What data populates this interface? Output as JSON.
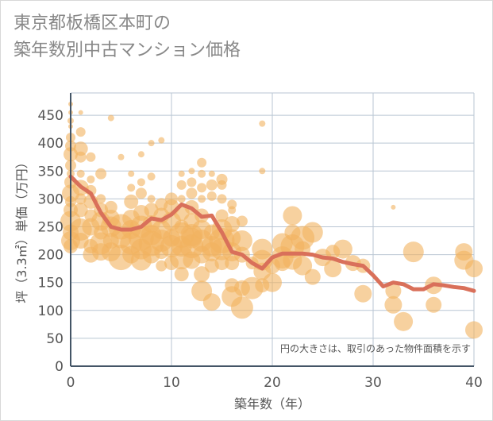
{
  "title": {
    "line1": "東京都板橋区本町の",
    "line2": "築年数別中古マンション価格"
  },
  "chart_data": {
    "type": "scatter",
    "title": "東京都板橋区本町の築年数別中古マンション価格",
    "xlabel": "築年数（年）",
    "ylabel": "坪（3.3㎡）単価（万円）",
    "xlim": [
      0,
      40
    ],
    "ylim": [
      0,
      490
    ],
    "xticks": [
      0,
      10,
      20,
      30,
      40
    ],
    "yticks": [
      0,
      50,
      100,
      150,
      200,
      250,
      300,
      350,
      400,
      450
    ],
    "grid": true,
    "note": "円の大きさは、取引のあった物件面積を示す",
    "colors": {
      "bubble": "#f2b35f",
      "line": "#d9705a",
      "axis": "#445566",
      "grid": "#b9c6d3"
    },
    "series": [
      {
        "kind": "bubble",
        "points": [
          [
            0,
            470,
            3
          ],
          [
            0,
            455,
            3
          ],
          [
            0,
            440,
            4
          ],
          [
            0,
            430,
            3
          ],
          [
            0,
            410,
            6
          ],
          [
            0,
            395,
            7
          ],
          [
            0,
            380,
            9
          ],
          [
            0,
            360,
            7
          ],
          [
            0,
            345,
            5
          ],
          [
            0,
            330,
            8
          ],
          [
            0,
            310,
            11
          ],
          [
            0,
            295,
            7
          ],
          [
            0,
            280,
            9
          ],
          [
            0,
            260,
            13
          ],
          [
            0,
            240,
            10
          ],
          [
            0,
            225,
            12
          ],
          [
            0,
            215,
            9
          ],
          [
            1,
            455,
            3
          ],
          [
            1,
            420,
            6
          ],
          [
            1,
            390,
            9
          ],
          [
            1,
            375,
            7
          ],
          [
            1,
            345,
            5
          ],
          [
            1,
            320,
            10
          ],
          [
            1,
            300,
            7
          ],
          [
            1,
            280,
            9
          ],
          [
            1,
            245,
            14
          ],
          [
            1,
            225,
            10
          ],
          [
            2,
            375,
            6
          ],
          [
            2,
            335,
            5
          ],
          [
            2,
            315,
            7
          ],
          [
            2,
            295,
            9
          ],
          [
            2,
            270,
            8
          ],
          [
            2,
            250,
            11
          ],
          [
            2,
            215,
            9
          ],
          [
            2,
            200,
            10
          ],
          [
            3,
            345,
            7
          ],
          [
            3,
            300,
            6
          ],
          [
            3,
            280,
            9
          ],
          [
            3,
            260,
            12
          ],
          [
            3,
            240,
            9
          ],
          [
            3,
            220,
            14
          ],
          [
            3,
            205,
            11
          ],
          [
            4,
            445,
            4
          ],
          [
            4,
            285,
            8
          ],
          [
            4,
            265,
            11
          ],
          [
            4,
            250,
            13
          ],
          [
            4,
            225,
            10
          ],
          [
            4,
            205,
            12
          ],
          [
            5,
            375,
            4
          ],
          [
            5,
            250,
            16
          ],
          [
            5,
            230,
            13
          ],
          [
            5,
            195,
            16
          ],
          [
            6,
            345,
            4
          ],
          [
            6,
            320,
            5
          ],
          [
            6,
            295,
            9
          ],
          [
            6,
            265,
            11
          ],
          [
            6,
            245,
            12
          ],
          [
            6,
            220,
            14
          ],
          [
            6,
            200,
            11
          ],
          [
            7,
            380,
            4
          ],
          [
            7,
            330,
            5
          ],
          [
            7,
            310,
            7
          ],
          [
            7,
            275,
            10
          ],
          [
            7,
            250,
            14
          ],
          [
            7,
            230,
            16
          ],
          [
            7,
            210,
            13
          ],
          [
            7,
            190,
            13
          ],
          [
            8,
            400,
            4
          ],
          [
            8,
            340,
            5
          ],
          [
            8,
            300,
            5
          ],
          [
            8,
            280,
            9
          ],
          [
            8,
            255,
            11
          ],
          [
            8,
            235,
            13
          ],
          [
            8,
            220,
            16
          ],
          [
            8,
            200,
            11
          ],
          [
            9,
            405,
            4
          ],
          [
            9,
            290,
            8
          ],
          [
            9,
            270,
            10
          ],
          [
            9,
            245,
            12
          ],
          [
            9,
            225,
            14
          ],
          [
            9,
            205,
            9
          ],
          [
            9,
            180,
            7
          ],
          [
            10,
            300,
            8
          ],
          [
            10,
            285,
            10
          ],
          [
            10,
            260,
            12
          ],
          [
            10,
            230,
            11
          ],
          [
            10,
            215,
            14
          ],
          [
            10,
            185,
            9
          ],
          [
            11,
            345,
            4
          ],
          [
            11,
            325,
            6
          ],
          [
            11,
            300,
            5
          ],
          [
            11,
            275,
            10
          ],
          [
            11,
            250,
            9
          ],
          [
            11,
            235,
            16
          ],
          [
            11,
            215,
            13
          ],
          [
            11,
            195,
            15
          ],
          [
            11,
            165,
            9
          ],
          [
            12,
            350,
            4
          ],
          [
            12,
            330,
            6
          ],
          [
            12,
            310,
            7
          ],
          [
            12,
            285,
            9
          ],
          [
            12,
            260,
            10
          ],
          [
            12,
            235,
            14
          ],
          [
            12,
            230,
            13
          ],
          [
            12,
            215,
            15
          ],
          [
            12,
            190,
            11
          ],
          [
            13,
            365,
            6
          ],
          [
            13,
            345,
            5
          ],
          [
            13,
            320,
            6
          ],
          [
            13,
            300,
            5
          ],
          [
            13,
            270,
            9
          ],
          [
            13,
            245,
            12
          ],
          [
            13,
            225,
            14
          ],
          [
            13,
            200,
            11
          ],
          [
            13,
            165,
            10
          ],
          [
            13,
            135,
            13
          ],
          [
            14,
            345,
            4
          ],
          [
            14,
            325,
            7
          ],
          [
            14,
            305,
            6
          ],
          [
            14,
            240,
            10
          ],
          [
            14,
            215,
            13
          ],
          [
            14,
            205,
            12
          ],
          [
            14,
            180,
            9
          ],
          [
            14,
            115,
            11
          ],
          [
            15,
            335,
            7
          ],
          [
            15,
            325,
            6
          ],
          [
            15,
            300,
            6
          ],
          [
            15,
            270,
            8
          ],
          [
            15,
            245,
            13
          ],
          [
            15,
            225,
            16
          ],
          [
            15,
            210,
            14
          ],
          [
            15,
            185,
            9
          ],
          [
            16,
            290,
            6
          ],
          [
            16,
            280,
            5
          ],
          [
            16,
            255,
            10
          ],
          [
            16,
            230,
            11
          ],
          [
            16,
            205,
            12
          ],
          [
            16,
            185,
            9
          ],
          [
            16,
            145,
            9
          ],
          [
            16,
            125,
            13
          ],
          [
            17,
            260,
            7
          ],
          [
            17,
            225,
            13
          ],
          [
            17,
            200,
            10
          ],
          [
            17,
            140,
            10
          ],
          [
            17,
            105,
            14
          ],
          [
            18,
            185,
            8
          ],
          [
            18,
            140,
            14
          ],
          [
            19,
            435,
            4
          ],
          [
            19,
            350,
            4
          ],
          [
            19,
            210,
            13
          ],
          [
            19,
            190,
            13
          ],
          [
            19,
            170,
            11
          ],
          [
            19,
            145,
            9
          ],
          [
            20,
            180,
            10
          ],
          [
            20,
            150,
            12
          ],
          [
            21,
            220,
            13
          ],
          [
            21,
            195,
            14
          ],
          [
            21,
            185,
            10
          ],
          [
            22,
            270,
            12
          ],
          [
            22,
            240,
            10
          ],
          [
            22,
            215,
            15
          ],
          [
            22,
            190,
            12
          ],
          [
            23,
            230,
            15
          ],
          [
            23,
            210,
            10
          ],
          [
            23,
            180,
            12
          ],
          [
            24,
            240,
            13
          ],
          [
            24,
            160,
            10
          ],
          [
            25,
            195,
            11
          ],
          [
            26,
            205,
            9
          ],
          [
            26,
            175,
            11
          ],
          [
            27,
            210,
            12
          ],
          [
            28,
            185,
            10
          ],
          [
            29,
            180,
            9
          ],
          [
            29,
            130,
            11
          ],
          [
            32,
            285,
            3
          ],
          [
            32,
            135,
            10
          ],
          [
            32,
            110,
            11
          ],
          [
            33,
            80,
            12
          ],
          [
            34,
            205,
            13
          ],
          [
            36,
            145,
            11
          ],
          [
            36,
            110,
            10
          ],
          [
            39,
            205,
            11
          ],
          [
            39,
            190,
            12
          ],
          [
            40,
            175,
            11
          ],
          [
            40,
            65,
            11
          ]
        ]
      },
      {
        "kind": "line",
        "points": [
          [
            0,
            340
          ],
          [
            1,
            322
          ],
          [
            2,
            310
          ],
          [
            3,
            275
          ],
          [
            4,
            250
          ],
          [
            5,
            245
          ],
          [
            6,
            245
          ],
          [
            7,
            250
          ],
          [
            8,
            265
          ],
          [
            9,
            262
          ],
          [
            10,
            272
          ],
          [
            11,
            290
          ],
          [
            12,
            283
          ],
          [
            13,
            268
          ],
          [
            14,
            270
          ],
          [
            15,
            240
          ],
          [
            16,
            205
          ],
          [
            17,
            200
          ],
          [
            18,
            185
          ],
          [
            19,
            175
          ],
          [
            20,
            195
          ],
          [
            21,
            202
          ],
          [
            22,
            202
          ],
          [
            23,
            202
          ],
          [
            24,
            200
          ],
          [
            25,
            195
          ],
          [
            26,
            193
          ],
          [
            27,
            187
          ],
          [
            28,
            183
          ],
          [
            29,
            180
          ],
          [
            30,
            163
          ],
          [
            31,
            143
          ],
          [
            32,
            150
          ],
          [
            33,
            147
          ],
          [
            34,
            138
          ],
          [
            35,
            138
          ],
          [
            36,
            147
          ],
          [
            37,
            145
          ],
          [
            38,
            142
          ],
          [
            39,
            140
          ],
          [
            40,
            135
          ]
        ]
      }
    ]
  }
}
